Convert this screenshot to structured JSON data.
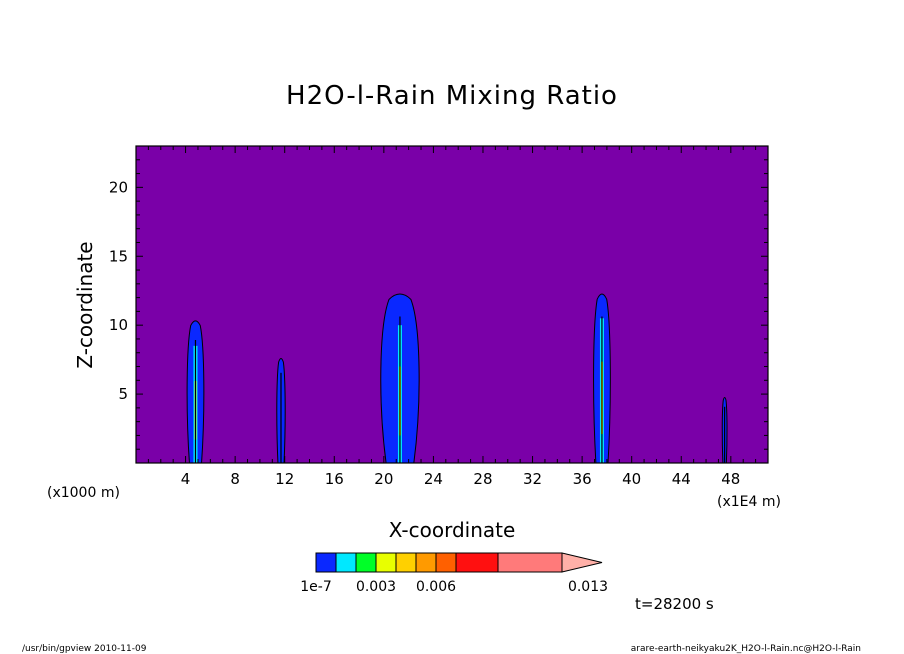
{
  "chart_data": {
    "type": "heatmap",
    "title": "H2O-l-Rain Mixing Ratio",
    "xlabel": "X-coordinate",
    "ylabel": "Z-coordinate",
    "x_unit_left": "(x1000 m)",
    "x_unit_right": "(x1E4 m)",
    "xlim": [
      0,
      51
    ],
    "ylim": [
      0,
      23
    ],
    "x_ticks": [
      4,
      8,
      12,
      16,
      20,
      24,
      28,
      32,
      36,
      40,
      44,
      48
    ],
    "y_ticks": [
      5,
      10,
      15,
      20
    ],
    "background_color": "#7a00a8",
    "levels": [
      {
        "color": "#0a28ff"
      },
      {
        "color": "#00e8ff"
      },
      {
        "color": "#00ff28"
      },
      {
        "color": "#e8ff00"
      },
      {
        "color": "#ffd000"
      },
      {
        "color": "#ff9a00"
      },
      {
        "color": "#ff6000"
      },
      {
        "color": "#ff1010"
      },
      {
        "color": "#ff7a7a"
      },
      {
        "color": "#ffb0a8"
      }
    ],
    "colorbar_labels": [
      "1e-7",
      "0.003",
      "0.006",
      "0.013"
    ],
    "cells": [
      {
        "x": 4.8,
        "z_top": 10.5,
        "core_top": 8.5,
        "halfwidth": 0.7
      },
      {
        "x": 11.7,
        "z_top": 7.7,
        "core_top": 0,
        "halfwidth": 0.35
      },
      {
        "x": 21.3,
        "z_top": 12.5,
        "core_top": 10.0,
        "halfwidth": 1.6
      },
      {
        "x": 37.6,
        "z_top": 12.5,
        "core_top": 10.5,
        "halfwidth": 0.7
      },
      {
        "x": 47.5,
        "z_top": 4.8,
        "core_top": 0,
        "halfwidth": 0.2
      }
    ]
  },
  "time_label": "t=28200 s",
  "footer_left": "/usr/bin/gpview  2010-11-09",
  "footer_right": "arare-earth-neikyaku2K_H2O-l-Rain.nc@H2O-l-Rain"
}
